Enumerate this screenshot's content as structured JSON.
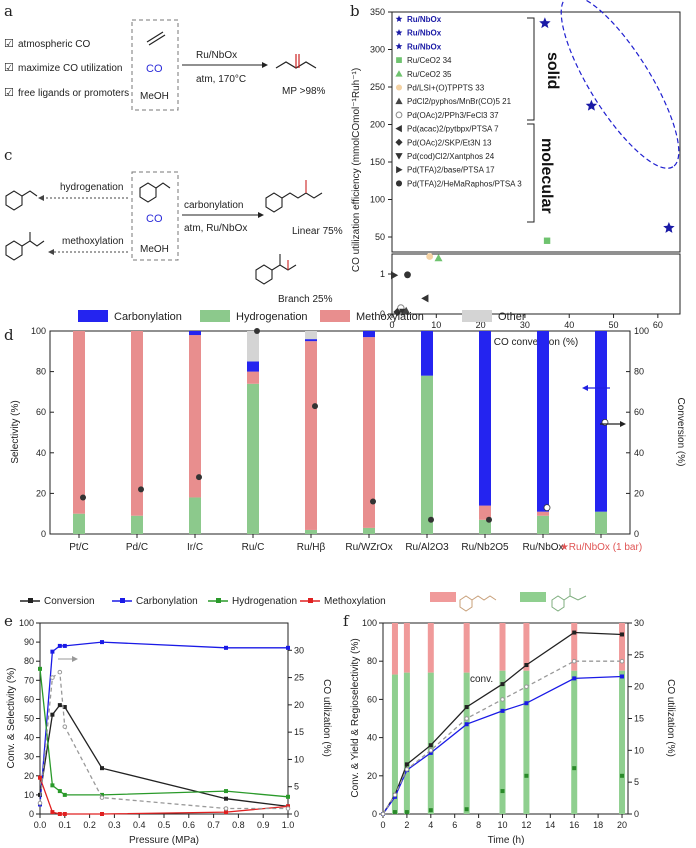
{
  "panel_labels": {
    "a": "a",
    "b": "b",
    "c": "c",
    "d": "d",
    "e": "e",
    "f": "f"
  },
  "panel_a": {
    "conditions": [
      "atmospheric CO",
      "maximize CO utilization",
      "free ligands or promoters"
    ],
    "check_glyph": "☑",
    "reagents": {
      "co": "CO",
      "meoh": "MeOH"
    },
    "arrow_top": "Ru/NbOx",
    "arrow_bottom": "atm, 170°C",
    "product_label": "MP >98%",
    "co_color": "#2b2bd9"
  },
  "panel_c": {
    "left_top_label": "hydrogenation",
    "left_bottom_label": "methoxylation",
    "co": "CO",
    "meoh": "MeOH",
    "arrow_top": "carbonylation",
    "arrow_bottom": "atm, Ru/NbOx",
    "linear": "Linear 75%",
    "branch": "Branch 25%"
  },
  "chart_data": [
    {
      "panel": "b",
      "type": "scatter",
      "xlabel": "CO conversion (%)",
      "ylabel": "CO utilization efficiency (mmolCOmol⁻¹Ruh⁻¹)",
      "xlim": [
        0,
        65
      ],
      "ylim_top": [
        30,
        350
      ],
      "ylim_bottom": [
        0,
        1.5
      ],
      "x_ticks": [
        "0",
        "10",
        "20",
        "30",
        "40",
        "50",
        "60"
      ],
      "y_ticks_top": [
        "50",
        "100",
        "150",
        "200",
        "250",
        "300",
        "350"
      ],
      "y_ticks_bottom": [
        "0",
        "1"
      ],
      "side_labels": {
        "solid": "solid",
        "molecular": "molecular"
      },
      "legend": [
        {
          "name": "Ru/NbOx",
          "marker": "star",
          "color": "#1a1aa6",
          "bold": true
        },
        {
          "name": "Ru/NbOx",
          "marker": "star",
          "color": "#1a1aa6",
          "bold": true
        },
        {
          "name": "Ru/NbOx",
          "marker": "star",
          "color": "#1a1aa6",
          "bold": true
        },
        {
          "name": "Ru/CeO2 34",
          "marker": "square",
          "color": "#6fc36f"
        },
        {
          "name": "Ru/CeO2 35",
          "marker": "triangle",
          "color": "#6fc36f"
        },
        {
          "name": "Pd/LSI+(O)TPPTS 33",
          "marker": "circle",
          "color": "#f4d2a3"
        },
        {
          "name": "PdCl2/pyphos/MnBr(CO)5 21",
          "marker": "triangle",
          "color": "#444"
        },
        {
          "name": "Pd(OAc)2/PPh3/FeCl3 37",
          "marker": "circle-open",
          "color": "#888"
        },
        {
          "name": "Pd(acac)2/pytbpx/PTSA 7",
          "marker": "triangle-left",
          "color": "#333"
        },
        {
          "name": "Pd(OAc)2/SKP/Et3N 13",
          "marker": "diamond",
          "color": "#333"
        },
        {
          "name": "Pd(cod)Cl2/Xantphos 24",
          "marker": "triangle-down",
          "color": "#333"
        },
        {
          "name": "Pd(TFA)2/base/PTSA 17",
          "marker": "triangle-right",
          "color": "#333"
        },
        {
          "name": "Pd(TFA)2/HeMaRaphos/PTSA 3",
          "marker": "circle",
          "color": "#333"
        }
      ],
      "points_top": [
        {
          "x": 34.5,
          "y": 335,
          "marker": "star",
          "color": "#1a1aa6"
        },
        {
          "x": 45,
          "y": 225,
          "marker": "star",
          "color": "#1a1aa6"
        },
        {
          "x": 62.5,
          "y": 62,
          "marker": "star",
          "color": "#1a1aa6"
        },
        {
          "x": 35,
          "y": 45,
          "marker": "square",
          "color": "#6fc36f"
        },
        {
          "x": 8.5,
          "y": 24,
          "marker": "circle",
          "color": "#f4d2a3"
        },
        {
          "x": 10.5,
          "y": 22,
          "marker": "triangle",
          "color": "#6fc36f"
        }
      ],
      "points_bottom": [
        {
          "x": 0.5,
          "y": 0.97,
          "marker": "triangle-right",
          "color": "#333"
        },
        {
          "x": 3.5,
          "y": 0.98,
          "marker": "circle",
          "color": "#333"
        },
        {
          "x": 7.5,
          "y": 0.39,
          "marker": "triangle-left",
          "color": "#333"
        },
        {
          "x": 2,
          "y": 0.15,
          "marker": "circle-open",
          "color": "#888"
        },
        {
          "x": 1.2,
          "y": 0.05,
          "marker": "diamond",
          "color": "#333"
        },
        {
          "x": 2.5,
          "y": 0.05,
          "marker": "triangle-down",
          "color": "#333"
        },
        {
          "x": 3.2,
          "y": 0.08,
          "marker": "triangle",
          "color": "#444"
        }
      ]
    },
    {
      "panel": "d",
      "type": "bar",
      "ylabel_left": "Selectivity (%)",
      "ylabel_right": "Conversion (%)",
      "ylim": [
        0,
        100
      ],
      "y_ticks": [
        "0",
        "20",
        "40",
        "60",
        "80",
        "100"
      ],
      "categories": [
        "Pt/C",
        "Pd/C",
        "Ir/C",
        "Ru/C",
        "Ru/Hβ",
        "Ru/WZrOx",
        "Ru/Al2O3",
        "Ru/Nb2O5",
        "Ru/NbOx",
        "★Ru/NbOx (1 bar)"
      ],
      "legend": [
        "Carbonylation",
        "Hydrogenation",
        "Methoxylation",
        "Other"
      ],
      "colors": {
        "Carbonylation": "#2424f0",
        "Hydrogenation": "#8cc98c",
        "Methoxylation": "#e88e8e",
        "Other": "#d4d4d4"
      },
      "series": [
        {
          "name": "Hydrogenation",
          "values": [
            10,
            9,
            18,
            74,
            2,
            3,
            78,
            7,
            9,
            11
          ]
        },
        {
          "name": "Methoxylation",
          "values": [
            90,
            91,
            80,
            6,
            93,
            94,
            0,
            7,
            2,
            0
          ]
        },
        {
          "name": "Carbonylation",
          "values": [
            0,
            0,
            2,
            5,
            1,
            3,
            22,
            86,
            89,
            89
          ]
        },
        {
          "name": "Other",
          "values": [
            0,
            0,
            0,
            15,
            4,
            0,
            0,
            0,
            0,
            0
          ]
        }
      ],
      "conversion": [
        18,
        22,
        28,
        100,
        63,
        16,
        7,
        7,
        13,
        55
      ],
      "last_category_color": "#e05555"
    },
    {
      "panel": "e",
      "type": "line",
      "xlabel": "Pressure (MPa)",
      "ylabel_left": "Conv. & Selectivity (%)",
      "ylabel_right": "CO utilization (%)",
      "xlim": [
        0,
        1.0
      ],
      "ylim_left": [
        0,
        100
      ],
      "ylim_right": [
        0,
        35
      ],
      "x_ticks": [
        "0.0",
        "0.1",
        "0.2",
        "0.3",
        "0.4",
        "0.5",
        "0.6",
        "0.7",
        "0.8",
        "0.9",
        "1.0"
      ],
      "y_ticks_left": [
        "0",
        "10",
        "20",
        "30",
        "40",
        "50",
        "60",
        "70",
        "80",
        "90",
        "100"
      ],
      "y_ticks_right": [
        "0",
        "5",
        "10",
        "15",
        "20",
        "25",
        "30"
      ],
      "legend": [
        "Conversion",
        "Carbonylation",
        "Hydrogenation",
        "Methoxylation"
      ],
      "series": [
        {
          "name": "Conversion",
          "color": "#222",
          "x": [
            0,
            0.05,
            0.08,
            0.1,
            0.25,
            0.75,
            1.0
          ],
          "y": [
            10,
            52,
            57,
            56,
            24,
            8,
            4
          ]
        },
        {
          "name": "Carbonylation",
          "color": "#1a1ae6",
          "x": [
            0,
            0.05,
            0.08,
            0.1,
            0.25,
            0.75,
            1.0
          ],
          "y": [
            5,
            85,
            88,
            88,
            90,
            87,
            87
          ]
        },
        {
          "name": "Hydrogenation",
          "color": "#2a9a2a",
          "x": [
            0,
            0.05,
            0.08,
            0.1,
            0.25,
            0.75,
            1.0
          ],
          "y": [
            76,
            15,
            12,
            10,
            10,
            12,
            9
          ]
        },
        {
          "name": "Methoxylation",
          "color": "#e02020",
          "x": [
            0,
            0.05,
            0.08,
            0.1,
            0.25,
            0.75,
            1.0
          ],
          "y": [
            19,
            1,
            0,
            0,
            0,
            1,
            4
          ]
        },
        {
          "name": "CO utilization",
          "color": "#999",
          "dashed": true,
          "axis": "right",
          "x": [
            0,
            0.05,
            0.08,
            0.1,
            0.25,
            0.75,
            1.0
          ],
          "y": [
            2,
            25,
            26,
            16,
            3,
            1,
            1
          ]
        }
      ]
    },
    {
      "panel": "f",
      "type": "line",
      "xlabel": "Time (h)",
      "ylabel_left": "Conv. & Yield & Regioselectivity (%)",
      "ylabel_right": "CO utilization (%)",
      "xlim": [
        0,
        20.5
      ],
      "ylim_left": [
        0,
        100
      ],
      "ylim_right": [
        0,
        30
      ],
      "x_ticks": [
        "0",
        "2",
        "4",
        "6",
        "8",
        "10",
        "12",
        "14",
        "16",
        "18",
        "20"
      ],
      "y_ticks_left": [
        "0",
        "20",
        "40",
        "60",
        "80",
        "100"
      ],
      "y_ticks_right": [
        "0",
        "5",
        "10",
        "15",
        "20",
        "25",
        "30"
      ],
      "annotation": "conv.",
      "bar_times": [
        1,
        2,
        4,
        7,
        10,
        12,
        16,
        20
      ],
      "bar_linear": [
        73,
        74,
        74,
        74,
        75,
        75,
        75,
        75
      ],
      "bar_colors": {
        "linear": "#f09a9a",
        "branch": "#8fcf8f"
      },
      "series": [
        {
          "name": "conv.",
          "color": "#222",
          "x": [
            0,
            1,
            2,
            4,
            7,
            10,
            12,
            16,
            20
          ],
          "y": [
            0,
            10,
            26,
            36,
            56,
            68,
            78,
            95,
            94
          ]
        },
        {
          "name": "yield",
          "color": "#1a1ae6",
          "x": [
            0,
            1,
            2,
            4,
            7,
            10,
            12,
            16,
            20
          ],
          "y": [
            0,
            9,
            23,
            32,
            47,
            54,
            58,
            71,
            72
          ]
        },
        {
          "name": "CO utilization",
          "color": "#999",
          "dashed": true,
          "axis": "right",
          "x": [
            0,
            1,
            2,
            4,
            7,
            10,
            12,
            16,
            20
          ],
          "y": [
            0,
            3,
            7,
            10,
            15,
            18,
            20,
            24,
            24
          ]
        },
        {
          "name": "branch",
          "color": "#2a8a2a",
          "marker_only": true,
          "x": [
            1,
            2,
            4,
            7,
            10,
            12,
            16,
            20
          ],
          "y": [
            1,
            1,
            2,
            2.5,
            12,
            20,
            24,
            20
          ]
        }
      ]
    }
  ]
}
